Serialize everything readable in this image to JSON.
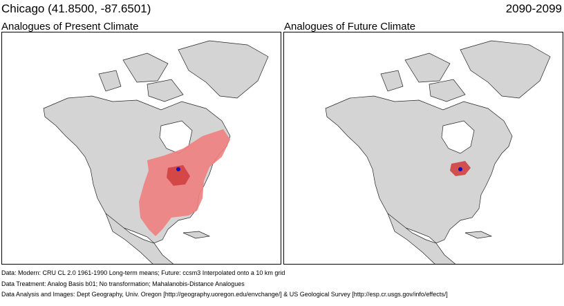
{
  "header": {
    "location": "Chicago  (41.8500, -87.6501)",
    "period": "2090-2099"
  },
  "panels": [
    {
      "title": "Analogues of Present Climate"
    },
    {
      "title": "Analogues of Future Climate"
    }
  ],
  "footer": {
    "line1": "Data:  Modern: CRU CL 2.0 1961-1990 Long-term means; Future: ccsm3 Interpolated onto a 10 km grid",
    "line2": "Data Treatment:  Analog Basis b01; No transformation; Mahalanobis-Distance Analogues",
    "line3": "Data Analysis and Images:  Dept Geography, Univ. Oregon [http://geography.uoregon.edu/envchange/] & US Geological Survey [http://esp.cr.usgs.gov/info/effects/]"
  },
  "colors": {
    "land": "#d4d4d4",
    "analog_light": "#f08080",
    "analog_dark": "#d04040",
    "site_marker": "#1010c0"
  }
}
